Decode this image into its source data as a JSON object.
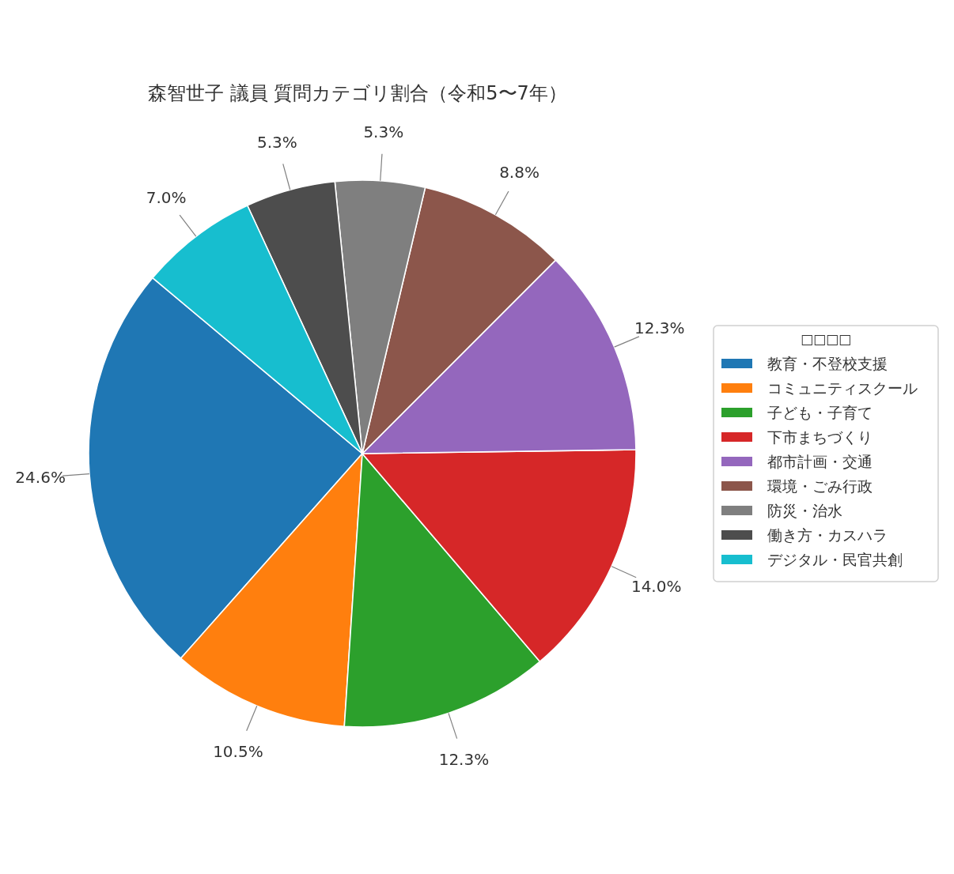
{
  "chart_data": {
    "type": "pie",
    "title": "森智世子 議員 質問カテゴリ割合（令和5〜7年）",
    "categories": [
      "教育・不登校支援",
      "コミュニティスクール",
      "子ども・子育て",
      "下市まちづくり",
      "都市計画・交通",
      "環境・ごみ行政",
      "防災・治水",
      "働き方・カスハラ",
      "デジタル・民官共創"
    ],
    "values": [
      24.6,
      10.5,
      12.3,
      14.0,
      12.3,
      8.8,
      5.3,
      5.3,
      7.0
    ],
    "colors": [
      "#1f77b4",
      "#ff7f0e",
      "#2ca02c",
      "#d62728",
      "#9467bd",
      "#8c564b",
      "#7f7f7f",
      "#4d4d4d",
      "#17becf"
    ],
    "value_labels": [
      "24.6%",
      "10.5%",
      "12.3%",
      "14.0%",
      "12.3%",
      "8.8%",
      "5.3%",
      "5.3%",
      "7.0%"
    ],
    "legend": "right",
    "legend_title": "□□□□"
  }
}
